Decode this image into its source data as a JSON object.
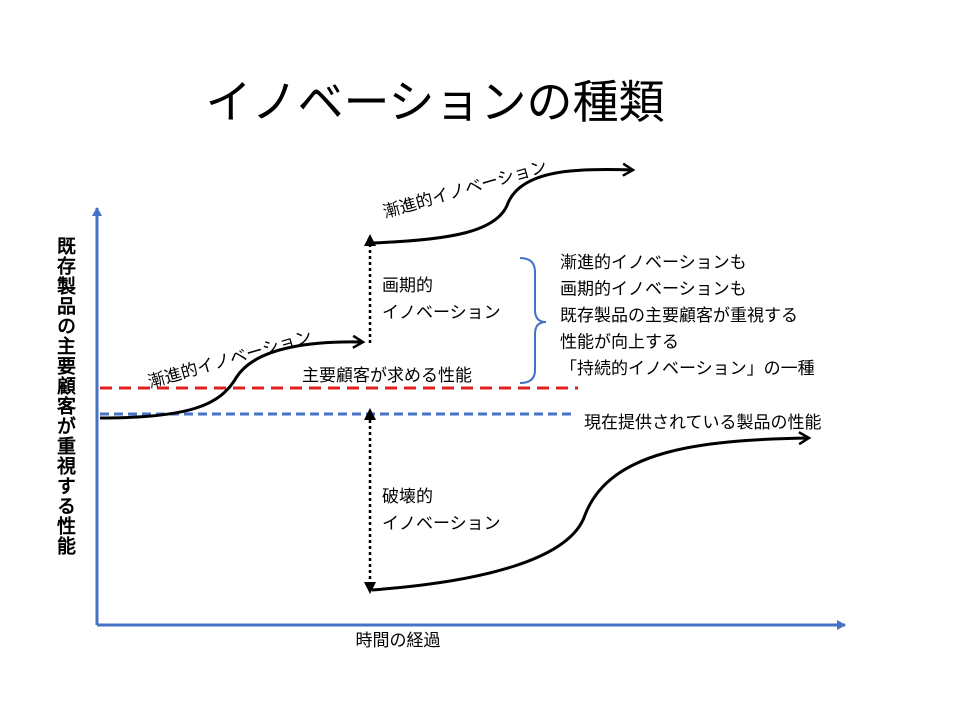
{
  "title": "イノベーションの種類",
  "y_axis_label": "既存製品の主要顧客が重視する性能",
  "x_axis_label": "時間の経過",
  "upper_incremental": "漸進的イノベーション",
  "lower_incremental": "漸進的イノベーション",
  "breakthrough": [
    "画期的",
    "イノベーション"
  ],
  "disruptive": [
    "破壊的",
    "イノベーション"
  ],
  "customer_demand_line": "主要顧客が求める性能",
  "current_product_line": "現在提供されている製品の性能",
  "note": [
    "漸進的イノベーションも",
    "画期的イノベーションも",
    "既存製品の主要顧客が重視する",
    "性能が向上する",
    "「持続的イノベーション」の一種"
  ]
}
